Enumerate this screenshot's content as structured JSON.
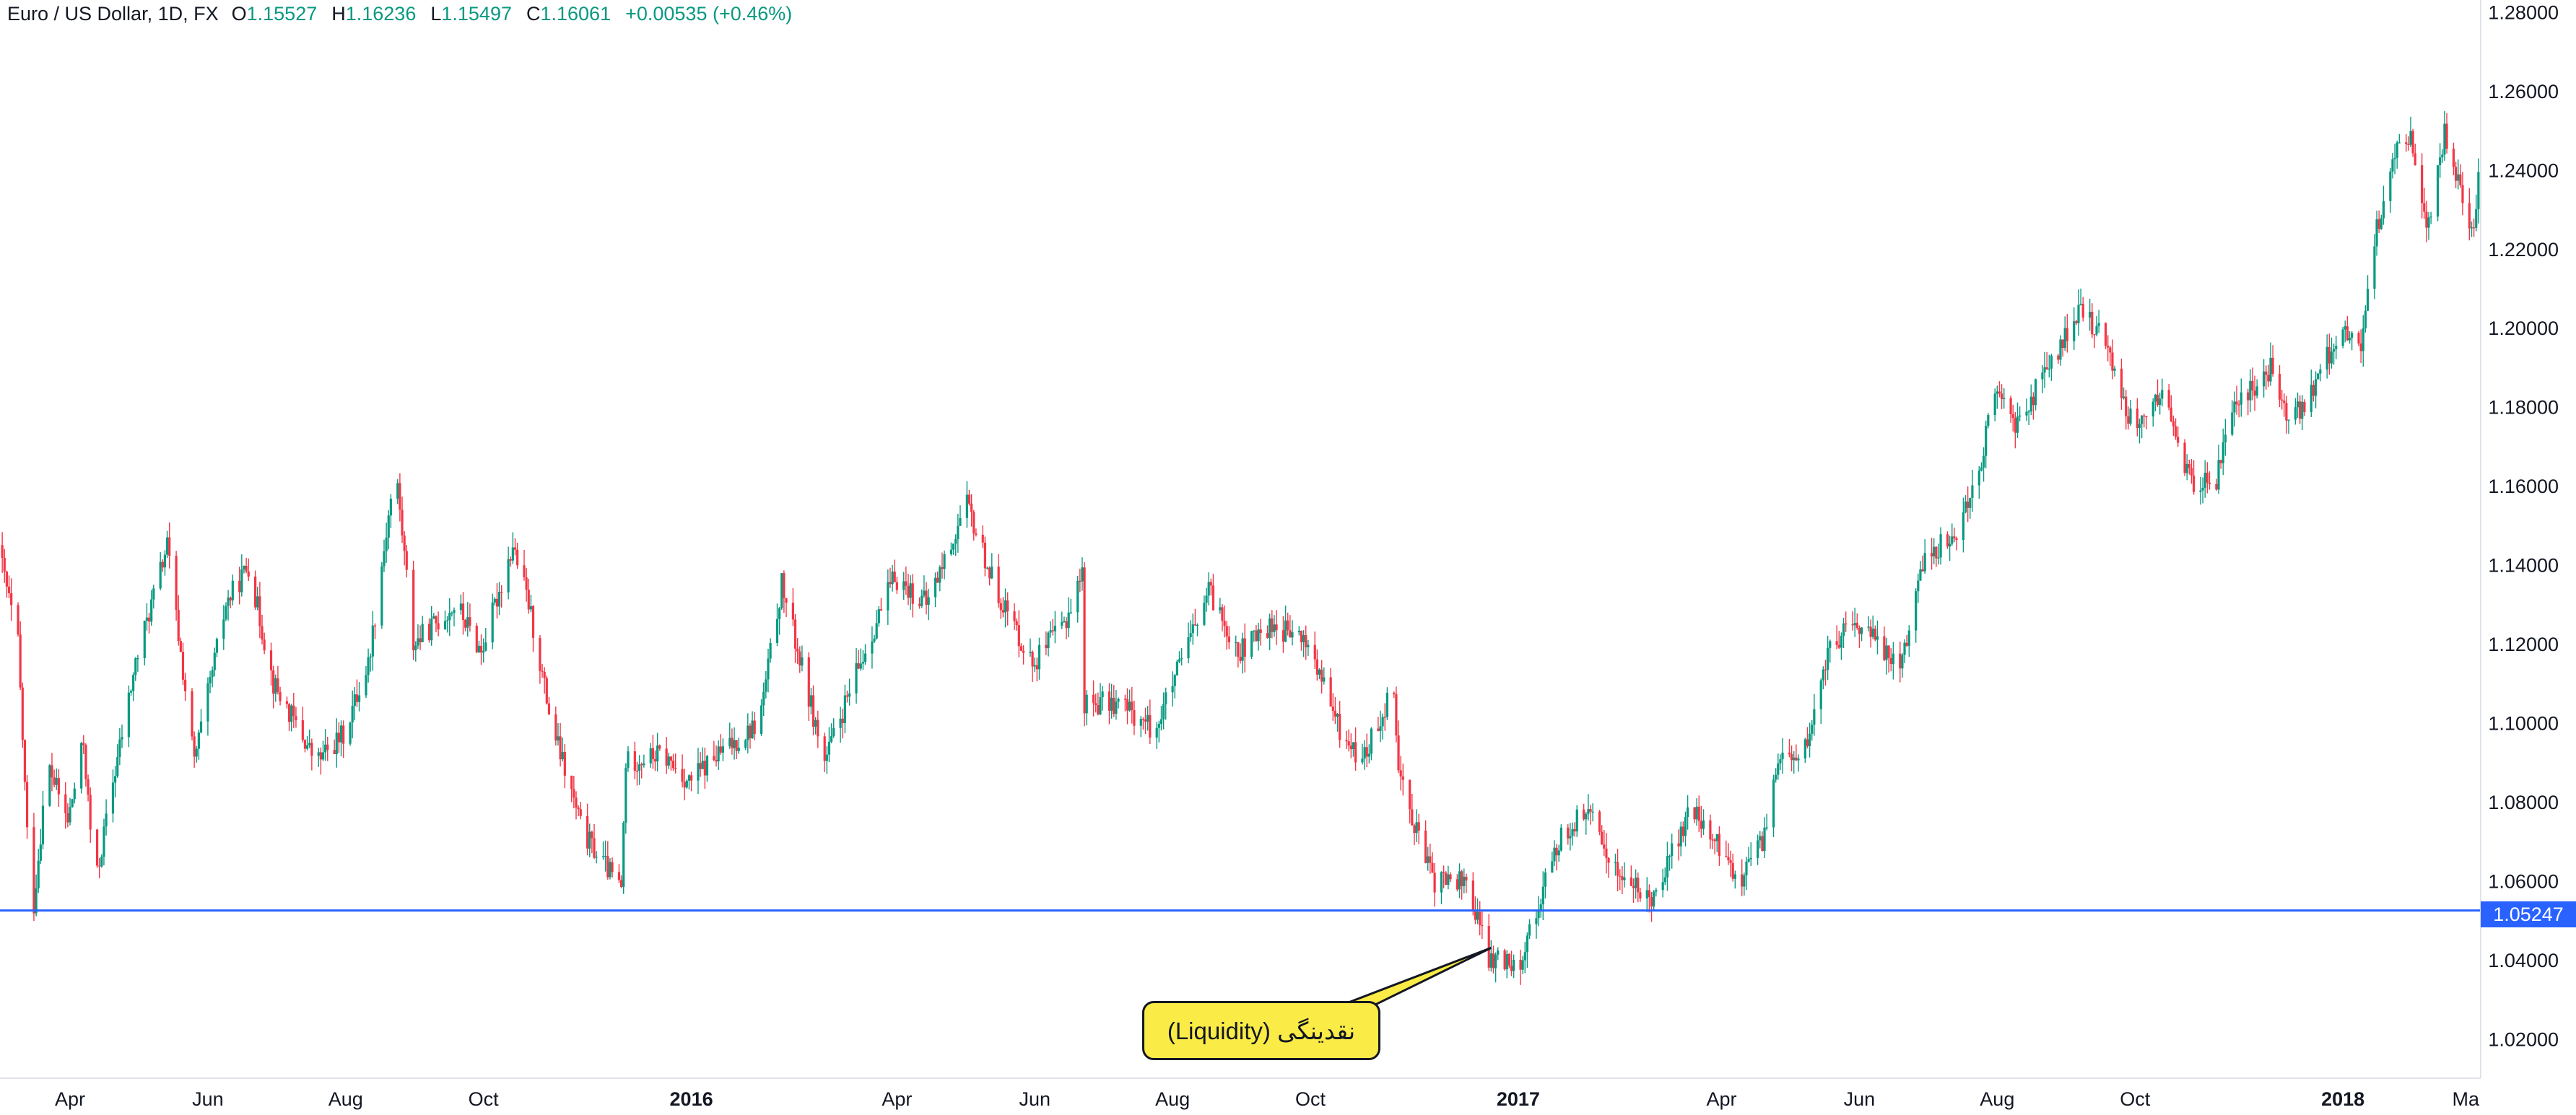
{
  "header": {
    "symbol": "Euro / US Dollar, 1D, FX",
    "open_label": "O",
    "open": "1.15527",
    "high_label": "H",
    "high": "1.16236",
    "low_label": "L",
    "low": "1.15497",
    "close_label": "C",
    "close": "1.16061",
    "change": "+0.00535 (+0.46%)"
  },
  "colors": {
    "up": "#089981",
    "down": "#f23645",
    "level_line": "#2962ff",
    "callout": "#fbeb46",
    "axis_text": "#131722",
    "legend_value": "#089981"
  },
  "annotation": {
    "text": "(Liquidity) نقدینگی"
  },
  "chart_data": {
    "type": "candlestick",
    "title": "Euro / US Dollar, 1D, FX",
    "xlabel": "",
    "ylabel": "",
    "ylim": [
      1.01,
      1.283
    ],
    "xlim": [
      "2015-03-01",
      "2018-03-03"
    ],
    "y_ticks": [
      "1.02000",
      "1.04000",
      "1.06000",
      "1.08000",
      "1.10000",
      "1.12000",
      "1.14000",
      "1.16000",
      "1.18000",
      "1.20000",
      "1.22000",
      "1.24000",
      "1.26000",
      "1.28000"
    ],
    "x_ticks": [
      {
        "label": "Apr",
        "date": "2015-04-01",
        "bold": false
      },
      {
        "label": "Jun",
        "date": "2015-06-01",
        "bold": false
      },
      {
        "label": "Aug",
        "date": "2015-08-01",
        "bold": false
      },
      {
        "label": "Oct",
        "date": "2015-10-01",
        "bold": false
      },
      {
        "label": "2016",
        "date": "2016-01-01",
        "bold": true
      },
      {
        "label": "Apr",
        "date": "2016-04-01",
        "bold": false
      },
      {
        "label": "Jun",
        "date": "2016-06-01",
        "bold": false
      },
      {
        "label": "Aug",
        "date": "2016-08-01",
        "bold": false
      },
      {
        "label": "Oct",
        "date": "2016-10-01",
        "bold": false
      },
      {
        "label": "2017",
        "date": "2017-01-01",
        "bold": true
      },
      {
        "label": "Apr",
        "date": "2017-04-01",
        "bold": false
      },
      {
        "label": "Jun",
        "date": "2017-06-01",
        "bold": false
      },
      {
        "label": "Aug",
        "date": "2017-08-01",
        "bold": false
      },
      {
        "label": "Oct",
        "date": "2017-10-01",
        "bold": false
      },
      {
        "label": "2018",
        "date": "2018-01-01",
        "bold": true
      },
      {
        "label": "Ma",
        "date": "2018-03-01",
        "bold": false
      }
    ],
    "horizontal_line": {
      "value": 1.05247,
      "label": "1.05247"
    },
    "price_path": [
      [
        "2015-03-01",
        1.145
      ],
      [
        "2015-03-10",
        1.12
      ],
      [
        "2015-03-16",
        1.048
      ],
      [
        "2015-03-23",
        1.09
      ],
      [
        "2015-04-01",
        1.075
      ],
      [
        "2015-04-08",
        1.095
      ],
      [
        "2015-04-13",
        1.058
      ],
      [
        "2015-04-20",
        1.082
      ],
      [
        "2015-05-01",
        1.115
      ],
      [
        "2015-05-15",
        1.145
      ],
      [
        "2015-05-27",
        1.09
      ],
      [
        "2015-06-10",
        1.13
      ],
      [
        "2015-06-20",
        1.14
      ],
      [
        "2015-07-01",
        1.11
      ],
      [
        "2015-07-20",
        1.09
      ],
      [
        "2015-08-01",
        1.097
      ],
      [
        "2015-08-12",
        1.115
      ],
      [
        "2015-08-24",
        1.165
      ],
      [
        "2015-09-01",
        1.12
      ],
      [
        "2015-09-20",
        1.13
      ],
      [
        "2015-10-01",
        1.118
      ],
      [
        "2015-10-15",
        1.145
      ],
      [
        "2015-10-22",
        1.13
      ],
      [
        "2015-11-01",
        1.1
      ],
      [
        "2015-11-15",
        1.072
      ],
      [
        "2015-12-02",
        1.058
      ],
      [
        "2015-12-04",
        1.09
      ],
      [
        "2015-12-20",
        1.092
      ],
      [
        "2016-01-01",
        1.085
      ],
      [
        "2016-01-10",
        1.09
      ],
      [
        "2016-02-01",
        1.1
      ],
      [
        "2016-02-11",
        1.135
      ],
      [
        "2016-03-01",
        1.09
      ],
      [
        "2016-03-20",
        1.12
      ],
      [
        "2016-04-01",
        1.137
      ],
      [
        "2016-04-15",
        1.13
      ],
      [
        "2016-05-03",
        1.155
      ],
      [
        "2016-05-15",
        1.135
      ],
      [
        "2016-06-01",
        1.115
      ],
      [
        "2016-06-15",
        1.125
      ],
      [
        "2016-06-23",
        1.138
      ],
      [
        "2016-06-24",
        1.105
      ],
      [
        "2016-07-10",
        1.105
      ],
      [
        "2016-07-25",
        1.098
      ],
      [
        "2016-08-18",
        1.133
      ],
      [
        "2016-09-01",
        1.118
      ],
      [
        "2016-09-15",
        1.125
      ],
      [
        "2016-10-01",
        1.12
      ],
      [
        "2016-10-15",
        1.098
      ],
      [
        "2016-10-25",
        1.09
      ],
      [
        "2016-11-08",
        1.11
      ],
      [
        "2016-11-10",
        1.088
      ],
      [
        "2016-11-25",
        1.06
      ],
      [
        "2016-12-10",
        1.06
      ],
      [
        "2016-12-20",
        1.04
      ],
      [
        "2017-01-03",
        1.04
      ],
      [
        "2017-01-20",
        1.07
      ],
      [
        "2017-02-01",
        1.078
      ],
      [
        "2017-02-15",
        1.062
      ],
      [
        "2017-03-01",
        1.055
      ],
      [
        "2017-03-20",
        1.078
      ],
      [
        "2017-04-01",
        1.068
      ],
      [
        "2017-04-10",
        1.06
      ],
      [
        "2017-04-22",
        1.072
      ],
      [
        "2017-04-24",
        1.088
      ],
      [
        "2017-05-10",
        1.094
      ],
      [
        "2017-05-20",
        1.12
      ],
      [
        "2017-06-01",
        1.125
      ],
      [
        "2017-06-20",
        1.115
      ],
      [
        "2017-07-01",
        1.142
      ],
      [
        "2017-07-15",
        1.148
      ],
      [
        "2017-07-25",
        1.165
      ],
      [
        "2017-08-02",
        1.185
      ],
      [
        "2017-08-10",
        1.175
      ],
      [
        "2017-08-30",
        1.195
      ],
      [
        "2017-09-08",
        1.205
      ],
      [
        "2017-09-20",
        1.195
      ],
      [
        "2017-10-01",
        1.175
      ],
      [
        "2017-10-15",
        1.183
      ],
      [
        "2017-10-27",
        1.16
      ],
      [
        "2017-11-07",
        1.162
      ],
      [
        "2017-11-15",
        1.18
      ],
      [
        "2017-12-01",
        1.19
      ],
      [
        "2017-12-10",
        1.176
      ],
      [
        "2017-12-20",
        1.185
      ],
      [
        "2018-01-01",
        1.2
      ],
      [
        "2018-01-10",
        1.195
      ],
      [
        "2018-01-15",
        1.22
      ],
      [
        "2018-01-25",
        1.245
      ],
      [
        "2018-02-01",
        1.248
      ],
      [
        "2018-02-09",
        1.225
      ],
      [
        "2018-02-16",
        1.25
      ],
      [
        "2018-02-25",
        1.23
      ],
      [
        "2018-03-01",
        1.225
      ],
      [
        "2018-03-03",
        1.24
      ]
    ]
  }
}
